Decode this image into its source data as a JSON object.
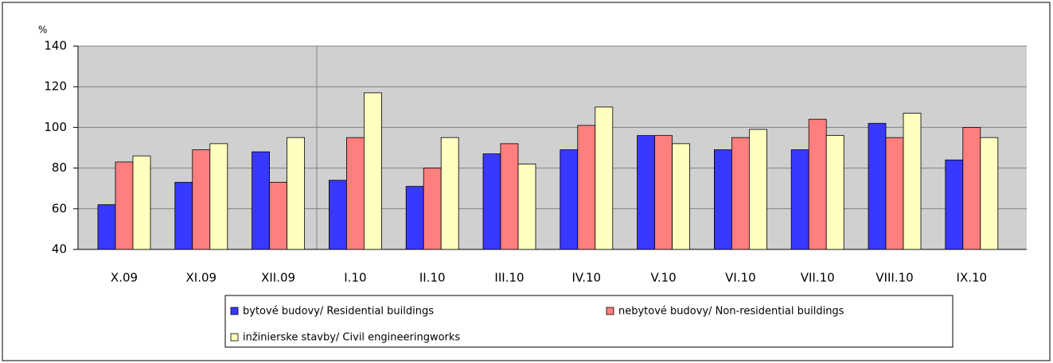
{
  "chart_data": {
    "type": "bar",
    "y_label": "%",
    "categories": [
      "X.09",
      "XI.09",
      "XII.09",
      "I.10",
      "II.10",
      "III.10",
      "IV.10",
      "V.10",
      "VI.10",
      "VII.10",
      "VIII.10",
      "IX.10"
    ],
    "series": [
      {
        "name": "bytové budovy/ Residential buildings",
        "color": "#3838ff",
        "values": [
          62,
          73,
          88,
          74,
          71,
          87,
          89,
          96,
          89,
          89,
          102,
          84
        ]
      },
      {
        "name": "nebytové budovy/ Non-residential buildings",
        "color": "#ff7f7f",
        "values": [
          83,
          89,
          73,
          95,
          80,
          92,
          101,
          96,
          95,
          104,
          95,
          100
        ]
      },
      {
        "name": "inžinierske stavby/ Civil engineeringworks",
        "color": "#ffffc0",
        "values": [
          86,
          92,
          95,
          117,
          95,
          82,
          110,
          92,
          99,
          96,
          107,
          95
        ]
      }
    ],
    "ylim": [
      40,
      140
    ],
    "yticks": [
      40,
      60,
      80,
      100,
      120,
      140
    ],
    "grid": true
  }
}
